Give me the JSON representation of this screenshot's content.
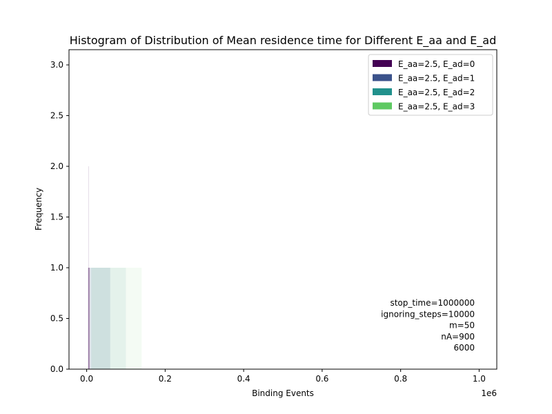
{
  "chart_data": {
    "type": "histogram",
    "title": "Histogram of Distribution of Mean residence time for Different E_aa and E_ad",
    "xlabel": "Binding Events",
    "ylabel": "Frequency",
    "x_offset_label": "1e6",
    "xlim": [
      -45000,
      1045000
    ],
    "ylim": [
      0,
      3.15
    ],
    "xticks": [
      0,
      200000,
      400000,
      600000,
      800000,
      1000000
    ],
    "xtick_labels": [
      "0.0",
      "0.2",
      "0.4",
      "0.6",
      "0.8",
      "1.0"
    ],
    "yticks": [
      0,
      0.5,
      1,
      1.5,
      2,
      2.5,
      3
    ],
    "ytick_labels": [
      "0.0",
      "0.5",
      "1.0",
      "1.5",
      "2.0",
      "2.5",
      "3.0"
    ],
    "legend_position": "top-right",
    "series": [
      {
        "name": "E_aa=2.5, E_ad=0",
        "color": "#440154",
        "x_range": [
          4000,
          8000
        ],
        "frequency": 1
      },
      {
        "name": "E_aa=2.5, E_ad=1",
        "color": "#3b528b",
        "x_range": [
          8000,
          60000
        ],
        "frequency": 1
      },
      {
        "name": "E_aa=2.5, E_ad=2",
        "color": "#21918c",
        "x_range": [
          10000,
          100000
        ],
        "frequency": 1
      },
      {
        "name": "E_aa=2.5, E_ad=3",
        "color": "#5ec962",
        "x_range": [
          12000,
          140000
        ],
        "frequency": 1
      }
    ],
    "peak": {
      "x": 5000,
      "frequency": 2
    },
    "annotation_lines": [
      "stop_time=1000000",
      "ignoring_steps=10000",
      "m=50",
      "nA=900",
      "6000"
    ]
  }
}
